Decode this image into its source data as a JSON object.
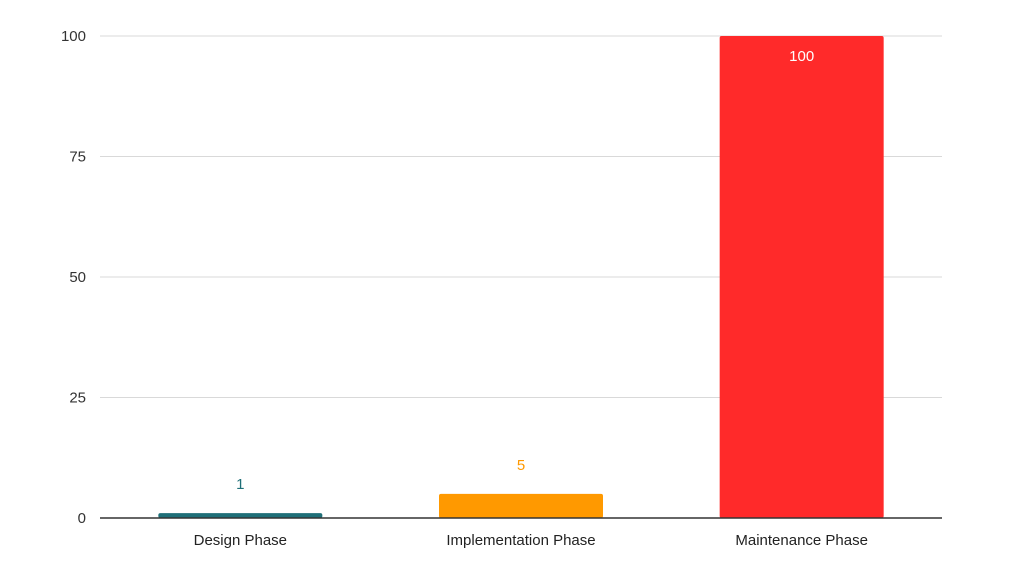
{
  "chart_data": {
    "type": "bar",
    "title": "",
    "xlabel": "",
    "ylabel": "",
    "categories": [
      "Design Phase",
      "Implementation Phase",
      "Maintenance Phase"
    ],
    "values": [
      1,
      5,
      100
    ],
    "data_labels": [
      "1",
      "5",
      "100"
    ],
    "colors": [
      "#1f6f78",
      "#ff9900",
      "#ff2a2a"
    ],
    "label_colors": [
      "#1f6f78",
      "#ff9900",
      "#ffffff"
    ],
    "ylim": [
      0,
      100
    ],
    "yticks": [
      0,
      25,
      50,
      75,
      100
    ],
    "ytick_labels": [
      "0",
      "25",
      "50",
      "75",
      "100"
    ],
    "grid": true,
    "legend": "none"
  }
}
